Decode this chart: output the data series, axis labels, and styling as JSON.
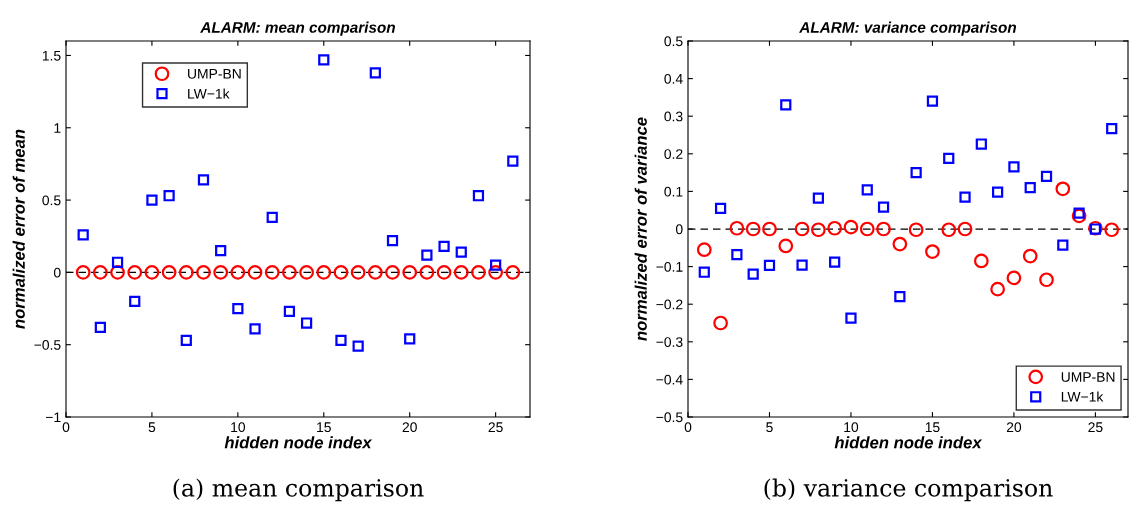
{
  "chart_data": [
    {
      "type": "scatter",
      "title": "ALARM: mean comparison",
      "xlabel": "hidden node index",
      "ylabel": "normalized error of mean",
      "x": [
        1,
        2,
        3,
        4,
        5,
        6,
        7,
        8,
        9,
        10,
        11,
        12,
        13,
        14,
        15,
        16,
        17,
        18,
        19,
        20,
        21,
        22,
        23,
        24,
        25,
        26
      ],
      "series": [
        {
          "name": "UMP-BN",
          "color": "#ff0000",
          "marker": "circle",
          "values": [
            0,
            0,
            0,
            0,
            0,
            0,
            0,
            0,
            0,
            0,
            0,
            0,
            0,
            0,
            0,
            0,
            0,
            0,
            0,
            0,
            0,
            0,
            0,
            0,
            0,
            0
          ]
        },
        {
          "name": "LW−1k",
          "color": "#0000ff",
          "marker": "square",
          "values": [
            0.26,
            -0.38,
            0.07,
            -0.2,
            0.5,
            0.53,
            -0.47,
            0.64,
            0.15,
            -0.25,
            -0.39,
            0.38,
            -0.27,
            -0.35,
            1.47,
            -0.47,
            -0.51,
            1.38,
            0.22,
            -0.46,
            0.12,
            0.18,
            0.14,
            0.53,
            0.05,
            0.77
          ]
        }
      ],
      "xlim": [
        0,
        27
      ],
      "xticks": [
        0,
        5,
        10,
        15,
        20,
        25
      ],
      "ylim": [
        -1,
        1.6
      ],
      "yticks": [
        {
          "value": -1,
          "label": "−1"
        },
        {
          "value": -0.5,
          "label": "−0.5"
        },
        0,
        0.5,
        1,
        1.5
      ],
      "ref_lines": [
        {
          "axis": "y",
          "value": 0,
          "color": "#000000",
          "line_style": "dashed"
        }
      ],
      "legend": "top left",
      "grid": false,
      "annotations": [
        "(a) mean comparison"
      ]
    },
    {
      "type": "scatter",
      "title": "ALARM: variance comparison",
      "xlabel": "hidden node index",
      "ylabel": "normalized error of variance",
      "x": [
        1,
        2,
        3,
        4,
        5,
        6,
        7,
        8,
        9,
        10,
        11,
        12,
        13,
        14,
        15,
        16,
        17,
        18,
        19,
        20,
        21,
        22,
        23,
        24,
        25,
        26
      ],
      "series": [
        {
          "name": "UMP-BN",
          "color": "#ff0000",
          "marker": "circle",
          "values": [
            -0.055,
            -0.25,
            0.002,
            0,
            0,
            -0.045,
            0,
            -0.002,
            0.002,
            0.005,
            0,
            0,
            -0.04,
            -0.002,
            -0.06,
            -0.002,
            0,
            -0.085,
            -0.16,
            -0.13,
            -0.072,
            -0.135,
            0.107,
            0.035,
            0.002,
            -0.002
          ]
        },
        {
          "name": "LW−1k",
          "color": "#0000ff",
          "marker": "square",
          "values": [
            -0.115,
            0.055,
            -0.068,
            -0.12,
            -0.097,
            0.33,
            -0.096,
            0.082,
            -0.088,
            -0.237,
            0.104,
            0.058,
            -0.18,
            0.15,
            0.34,
            0.188,
            0.085,
            0.226,
            0.098,
            0.165,
            0.11,
            0.14,
            -0.043,
            0.042,
            0,
            0.267
          ]
        }
      ],
      "xlim": [
        0,
        27
      ],
      "xticks": [
        0,
        5,
        10,
        15,
        20,
        25
      ],
      "ylim": [
        -0.5,
        0.5
      ],
      "yticks": [
        {
          "value": -0.5,
          "label": "−0.5"
        },
        {
          "value": -0.4,
          "label": "−0.4"
        },
        {
          "value": -0.3,
          "label": "−0.3"
        },
        {
          "value": -0.2,
          "label": "−0.2"
        },
        {
          "value": -0.1,
          "label": "−0.1"
        },
        0,
        0.1,
        0.2,
        0.3,
        0.4,
        0.5
      ],
      "ref_lines": [
        {
          "axis": "y",
          "value": 0,
          "color": "#000000",
          "line_style": "dashed"
        }
      ],
      "legend": "bottom right",
      "grid": false,
      "annotations": [
        "(b) variance comparison"
      ]
    }
  ]
}
